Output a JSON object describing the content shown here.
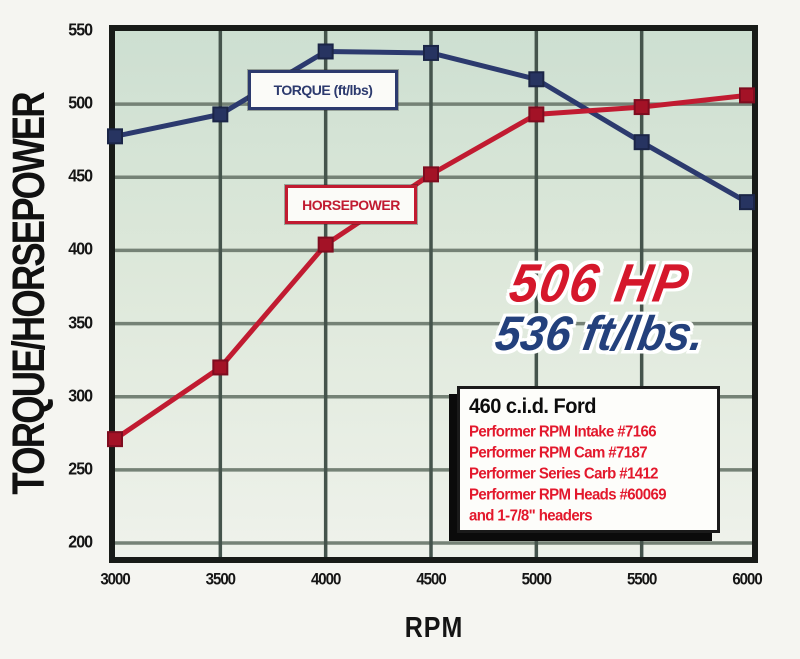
{
  "y_axis_title": "TORQUE/HORSEPOWER",
  "x_axis_title": "RPM",
  "legend": {
    "torque": "TORQUE (ft/lbs)",
    "horsepower": "HORSEPOWER"
  },
  "headline": {
    "hp": "506 HP",
    "torque": "536 ft/lbs."
  },
  "info_box": {
    "title": "460 c.i.d. Ford",
    "lines": [
      "Performer RPM Intake #7166",
      "Performer RPM Cam #7187",
      "Performer Series Carb #1412",
      "Performer RPM Heads #60069",
      "and 1-7/8\" headers"
    ]
  },
  "colors": {
    "page_bg": "#f5f5f1",
    "torque_navy": "#2c3a6e",
    "torque_marker": "#273461",
    "hp_red": "#c11b31",
    "hp_marker": "#a31226",
    "headline_red": "#d5172b",
    "headline_navy": "#23407c",
    "info_red": "#e3182c",
    "grid_horizontal": "#758276",
    "grid_vertical": "#45544c",
    "plot_border": "#181b18",
    "plot_bg_top": "#cddfd1",
    "plot_bg_mid": "#dde8da",
    "plot_bg_bottom": "#eff2eb"
  },
  "chart_data": {
    "type": "line",
    "title": "",
    "xlabel": "RPM",
    "ylabel": "TORQUE/HORSEPOWER",
    "x": [
      3000,
      3500,
      4000,
      4500,
      5000,
      5500,
      6000
    ],
    "series": [
      {
        "name": "TORQUE (ft/lbs)",
        "color": "#2c3a6e",
        "marker_color": "#273461",
        "values": [
          478,
          493,
          536,
          535,
          517,
          474,
          433
        ]
      },
      {
        "name": "HORSEPOWER",
        "color": "#c11b31",
        "marker_color": "#a31226",
        "values": [
          271,
          320,
          404,
          452,
          493,
          498,
          506
        ]
      }
    ],
    "xlim": [
      3000,
      6000
    ],
    "ylim": [
      200,
      550
    ],
    "x_ticks": [
      3000,
      3500,
      4000,
      4500,
      5000,
      5500,
      6000
    ],
    "y_ticks": [
      550,
      500,
      450,
      400,
      350,
      300,
      250,
      200
    ],
    "grid": true,
    "legend_position": "inside",
    "peak_hp": 506,
    "peak_torque": 536
  }
}
